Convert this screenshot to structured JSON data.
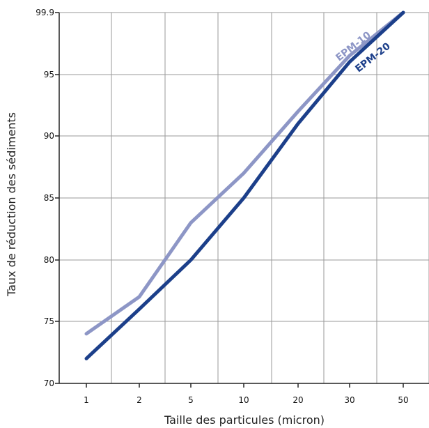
{
  "chart_data": {
    "type": "line",
    "title": "",
    "xlabel": "Taille des particules (micron)",
    "ylabel": "Taux de réduction des sédiments",
    "categories": [
      "1",
      "2",
      "5",
      "10",
      "20",
      "30",
      "50"
    ],
    "y_ticks": [
      "70",
      "75",
      "80",
      "85",
      "90",
      "95",
      "99.9"
    ],
    "ylim": [
      70,
      99.9
    ],
    "grid": true,
    "series": [
      {
        "name": "EPM-10",
        "color": "#8d96c6",
        "points": [
          [
            1,
            74
          ],
          [
            2,
            77
          ],
          [
            5,
            83
          ],
          [
            10,
            87
          ],
          [
            20,
            92
          ],
          [
            30,
            96.5
          ],
          [
            50,
            99.9
          ]
        ]
      },
      {
        "name": "EPM-20",
        "color": "#1c3f8a",
        "points": [
          [
            1,
            72
          ],
          [
            2,
            76
          ],
          [
            5,
            80
          ],
          [
            10,
            85
          ],
          [
            20,
            91
          ],
          [
            30,
            96
          ],
          [
            50,
            99.9
          ]
        ]
      }
    ]
  }
}
